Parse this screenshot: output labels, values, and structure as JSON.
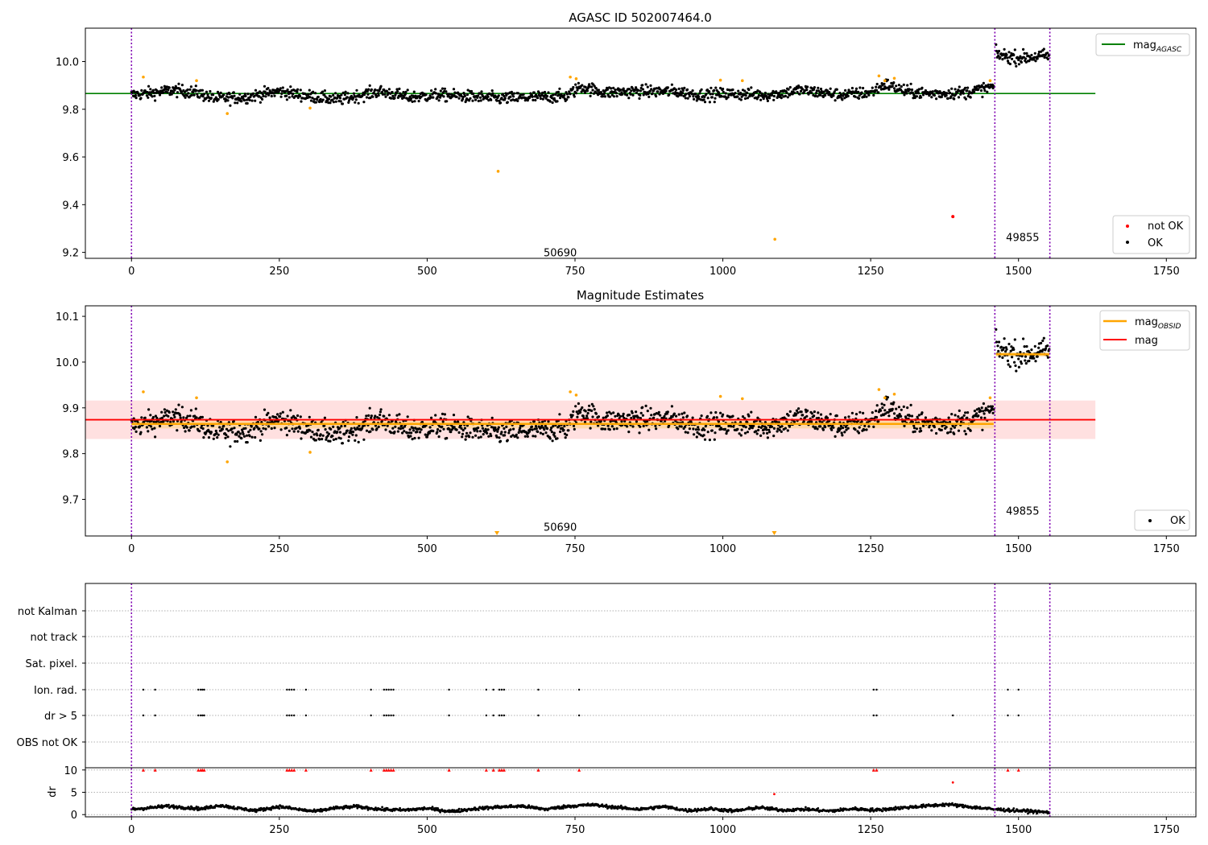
{
  "chart_data": [
    {
      "type": "scatter",
      "title": "AGASC ID 502007464.0",
      "xlim": [
        -78,
        1800
      ],
      "ylim": [
        9.175,
        10.14
      ],
      "x_ticks": [
        0,
        250,
        500,
        750,
        1000,
        1250,
        1500,
        1750
      ],
      "y_ticks": [
        9.2,
        9.4,
        9.6,
        9.8,
        10.0
      ],
      "vlines": [
        0,
        1460,
        1553
      ],
      "vline_color": "#7f00b2",
      "obsid_labels": [
        {
          "text": "50690",
          "x": 725,
          "y": 9.2
        },
        {
          "text": "49855",
          "x": 1507,
          "y": 9.265
        }
      ],
      "hline": {
        "name": "mag_AGASC",
        "y": 9.866,
        "color": "#008000"
      },
      "series_ok": {
        "name": "OK",
        "color": "#000000",
        "segments": [
          {
            "x_start": 0,
            "x_end": 1458,
            "control_points": [
              [
                0,
                9.86
              ],
              [
                40,
                9.87
              ],
              [
                70,
                9.88
              ],
              [
                110,
                9.87
              ],
              [
                140,
                9.845
              ],
              [
                190,
                9.85
              ],
              [
                250,
                9.875
              ],
              [
                300,
                9.855
              ],
              [
                350,
                9.84
              ],
              [
                420,
                9.875
              ],
              [
                470,
                9.85
              ],
              [
                520,
                9.86
              ],
              [
                560,
                9.855
              ],
              [
                620,
                9.845
              ],
              [
                680,
                9.85
              ],
              [
                735,
                9.855
              ],
              [
                760,
                9.895
              ],
              [
                800,
                9.87
              ],
              [
                850,
                9.875
              ],
              [
                920,
                9.875
              ],
              [
                960,
                9.86
              ],
              [
                1010,
                9.865
              ],
              [
                1080,
                9.86
              ],
              [
                1130,
                9.88
              ],
              [
                1200,
                9.86
              ],
              [
                1250,
                9.87
              ],
              [
                1275,
                9.905
              ],
              [
                1310,
                9.875
              ],
              [
                1350,
                9.865
              ],
              [
                1410,
                9.87
              ],
              [
                1458,
                9.895
              ]
            ],
            "noise": 0.018
          },
          {
            "x_start": 1462,
            "x_end": 1552,
            "control_points": [
              [
                1462,
                10.03
              ],
              [
                1500,
                10.015
              ],
              [
                1552,
                10.025
              ]
            ],
            "noise": 0.02
          }
        ]
      },
      "series_orange": {
        "name": "",
        "color": "#ffa500",
        "points": [
          [
            20,
            9.935
          ],
          [
            110,
            9.92
          ],
          [
            162,
            9.782
          ],
          [
            302,
            9.805
          ],
          [
            620,
            9.54
          ],
          [
            742,
            9.935
          ],
          [
            752,
            9.928
          ],
          [
            996,
            9.922
          ],
          [
            1033,
            9.92
          ],
          [
            1088,
            9.255
          ],
          [
            1264,
            9.94
          ],
          [
            1274,
            9.92
          ],
          [
            1290,
            9.93
          ],
          [
            1452,
            9.92
          ]
        ]
      },
      "series_notok": {
        "name": "not OK",
        "color": "#ff0000",
        "points": [
          [
            1389,
            9.35
          ]
        ]
      },
      "legend_top": [
        {
          "label": "mag",
          "sub": "AGASC",
          "color": "#008000"
        }
      ],
      "legend_bottom": [
        {
          "label": "not OK",
          "color": "#ff0000"
        },
        {
          "label": "OK",
          "color": "#000000"
        }
      ]
    },
    {
      "type": "scatter",
      "title": "Magnitude Estimates",
      "xlim": [
        -78,
        1800
      ],
      "ylim": [
        9.62,
        10.123
      ],
      "x_ticks": [
        0,
        250,
        500,
        750,
        1000,
        1250,
        1500,
        1750
      ],
      "y_ticks": [
        9.7,
        9.8,
        9.9,
        10.0,
        10.1
      ],
      "vlines": [
        0,
        1460,
        1553
      ],
      "obsid_labels": [
        {
          "text": "50690",
          "x": 725,
          "y": 9.64
        },
        {
          "text": "49855",
          "x": 1507,
          "y": 9.675
        }
      ],
      "mag_line": {
        "name": "mag",
        "y": 9.874,
        "color": "#ff0000",
        "band": [
          9.832,
          9.916
        ]
      },
      "obsid_mag": {
        "name": "mag_OBSID",
        "color": "#ffa500",
        "segments": [
          {
            "x_start": 0,
            "x_end": 1458,
            "y": 9.865,
            "band": [
              9.855,
              9.875
            ]
          },
          {
            "x_start": 1462,
            "x_end": 1552,
            "y": 10.017,
            "band": [
              10.012,
              10.022
            ]
          }
        ]
      },
      "series_ok": {
        "name": "OK",
        "color": "#000000",
        "same_as": "panel 1"
      },
      "series_orange": {
        "name": "",
        "color": "#ffa500",
        "points": [
          [
            20,
            9.935
          ],
          [
            110,
            9.922
          ],
          [
            162,
            9.782
          ],
          [
            302,
            9.803
          ],
          [
            742,
            9.935
          ],
          [
            752,
            9.928
          ],
          [
            996,
            9.925
          ],
          [
            1033,
            9.92
          ],
          [
            1264,
            9.94
          ],
          [
            1274,
            9.922
          ],
          [
            1290,
            9.93
          ],
          [
            1452,
            9.922
          ]
        ],
        "below_range_markers": [
          618,
          1087
        ]
      },
      "legend_top": [
        {
          "label": "mag",
          "sub": "OBSID",
          "color": "#ffa500"
        },
        {
          "label": "mag",
          "sub": "",
          "color": "#ff0000"
        }
      ],
      "legend_bottom": [
        {
          "label": "OK",
          "color": "#000000"
        }
      ]
    },
    {
      "type": "scatter",
      "title": "",
      "xlim": [
        -78,
        1800
      ],
      "x_ticks": [
        0,
        250,
        500,
        750,
        1000,
        1250,
        1500,
        1750
      ],
      "vlines": [
        0,
        1460,
        1553
      ],
      "category_rows": [
        "not Kalman",
        "not track",
        "Sat. pixel.",
        "Ion. rad.",
        "dr > 5",
        "OBS not OK"
      ],
      "ion_rad_x": [
        20,
        40,
        113,
        117,
        120,
        123,
        263,
        267,
        271,
        275,
        295,
        405,
        427,
        431,
        435,
        439,
        443,
        537,
        600,
        612,
        622,
        626,
        630,
        688,
        757,
        1255,
        1260,
        1482,
        1500
      ],
      "dr_gt5_x": [
        20,
        40,
        113,
        117,
        120,
        123,
        263,
        267,
        271,
        275,
        295,
        405,
        427,
        431,
        435,
        439,
        443,
        537,
        600,
        612,
        622,
        626,
        630,
        688,
        757,
        1255,
        1260,
        1389,
        1482,
        1500
      ],
      "dr_axis": {
        "ylabel": "dr",
        "ylim": [
          -0.5,
          10.5
        ],
        "y_ticks": [
          0,
          5,
          10
        ],
        "clip_value": 10,
        "outliers": [
          [
            1087,
            4.6
          ],
          [
            1389,
            7.2
          ]
        ],
        "baseline_control_points": [
          [
            0,
            1.2
          ],
          [
            30,
            1.5
          ],
          [
            60,
            1.9
          ],
          [
            90,
            1.6
          ],
          [
            120,
            1.3
          ],
          [
            150,
            2.1
          ],
          [
            180,
            1.4
          ],
          [
            210,
            0.9
          ],
          [
            250,
            1.8
          ],
          [
            280,
            1.2
          ],
          [
            310,
            0.7
          ],
          [
            340,
            1.4
          ],
          [
            380,
            1.8
          ],
          [
            420,
            1.2
          ],
          [
            460,
            1.0
          ],
          [
            500,
            1.4
          ],
          [
            540,
            0.7
          ],
          [
            580,
            1.3
          ],
          [
            620,
            1.7
          ],
          [
            660,
            1.9
          ],
          [
            700,
            1.2
          ],
          [
            740,
            1.9
          ],
          [
            780,
            2.2
          ],
          [
            820,
            1.6
          ],
          [
            860,
            1.2
          ],
          [
            900,
            1.8
          ],
          [
            940,
            0.9
          ],
          [
            980,
            1.3
          ],
          [
            1020,
            0.8
          ],
          [
            1060,
            1.6
          ],
          [
            1100,
            1.0
          ],
          [
            1140,
            1.2
          ],
          [
            1180,
            0.8
          ],
          [
            1220,
            1.3
          ],
          [
            1260,
            1.0
          ],
          [
            1300,
            1.5
          ],
          [
            1340,
            1.9
          ],
          [
            1380,
            2.3
          ],
          [
            1420,
            1.7
          ],
          [
            1458,
            1.2
          ],
          [
            1500,
            0.9
          ],
          [
            1552,
            0.5
          ]
        ]
      }
    }
  ]
}
